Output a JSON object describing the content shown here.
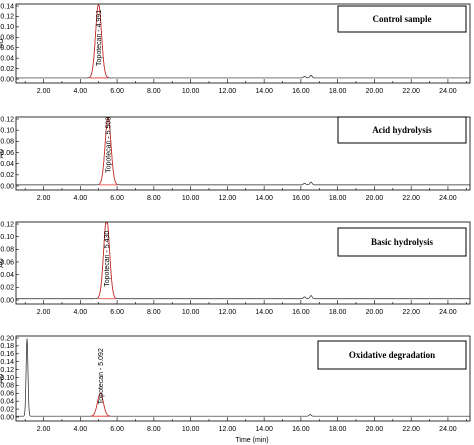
{
  "chart_data": [
    {
      "type": "line",
      "title": "Control sample",
      "ylabel": "AU",
      "xlabel": "",
      "xlim": [
        0.5,
        25.2
      ],
      "ylim": [
        0,
        0.14
      ],
      "y_ticks": [
        "0.00",
        "0.02",
        "0.04",
        "0.06",
        "0.08",
        "0.10",
        "0.12",
        "0.14"
      ],
      "x_ticks": [
        "2.00",
        "4.00",
        "6.00",
        "8.00",
        "10.00",
        "12.00",
        "14.00",
        "16.00",
        "18.00",
        "20.00",
        "22.00",
        "24.00"
      ],
      "baseline": 0.002,
      "peaks": [
        {
          "name": "Topotecan",
          "rt": 4.991,
          "height": 0.142,
          "label": "Topotecan - 4.991"
        },
        {
          "name": "",
          "rt": 16.2,
          "height": 0.003,
          "label": ""
        },
        {
          "name": "",
          "rt": 16.55,
          "height": 0.005,
          "label": ""
        }
      ]
    },
    {
      "type": "line",
      "title": "Acid hydrolysis",
      "ylabel": "AU",
      "xlabel": "",
      "xlim": [
        0.5,
        25.2
      ],
      "ylim": [
        0,
        0.12
      ],
      "y_ticks": [
        "0.00",
        "0.02",
        "0.04",
        "0.06",
        "0.08",
        "0.10",
        "0.12"
      ],
      "x_ticks": [
        "2.00",
        "4.00",
        "6.00",
        "8.00",
        "10.00",
        "12.00",
        "14.00",
        "16.00",
        "18.00",
        "20.00",
        "22.00",
        "24.00"
      ],
      "baseline": 0.002,
      "peaks": [
        {
          "name": "Topotecan",
          "rt": 5.508,
          "height": 0.12,
          "label": "Topotecan - 5.508"
        },
        {
          "name": "",
          "rt": 16.2,
          "height": 0.003,
          "label": ""
        },
        {
          "name": "",
          "rt": 16.55,
          "height": 0.005,
          "label": ""
        }
      ]
    },
    {
      "type": "line",
      "title": "Basic hydrolysis",
      "ylabel": "AU",
      "xlabel": "",
      "xlim": [
        0.5,
        25.2
      ],
      "ylim": [
        0,
        0.13
      ],
      "y_ticks": [
        "0.00",
        "0.02",
        "0.04",
        "0.06",
        "0.08",
        "0.10",
        "0.12"
      ],
      "x_ticks": [
        "2.00",
        "4.00",
        "6.00",
        "8.00",
        "10.00",
        "12.00",
        "14.00",
        "16.00",
        "18.00",
        "20.00",
        "22.00",
        "24.00"
      ],
      "baseline": 0.002,
      "peaks": [
        {
          "name": "Topotecan",
          "rt": 5.43,
          "height": 0.127,
          "label": "Topotecan - 5.430"
        },
        {
          "name": "",
          "rt": 16.2,
          "height": 0.003,
          "label": ""
        },
        {
          "name": "",
          "rt": 16.55,
          "height": 0.005,
          "label": ""
        }
      ]
    },
    {
      "type": "line",
      "title": "Oxidative degradation",
      "ylabel": "AU",
      "xlabel": "Time (min)",
      "xlim": [
        0.5,
        25.2
      ],
      "ylim": [
        0,
        0.21
      ],
      "y_ticks": [
        "0.00",
        "0.02",
        "0.04",
        "0.06",
        "0.08",
        "0.10",
        "0.12",
        "0.14",
        "0.16",
        "0.18",
        "0.20"
      ],
      "x_ticks": [
        "2.00",
        "4.00",
        "6.00",
        "8.00",
        "10.00",
        "12.00",
        "14.00",
        "16.00",
        "18.00",
        "20.00",
        "22.00",
        "24.00"
      ],
      "baseline": 0.002,
      "peaks": [
        {
          "name": "",
          "rt": 1.1,
          "height": 0.197,
          "label": ""
        },
        {
          "name": "Topotecan",
          "rt": 5.092,
          "height": 0.058,
          "label": "Topotecan - 5.092"
        },
        {
          "name": "",
          "rt": 16.5,
          "height": 0.004,
          "label": ""
        }
      ]
    }
  ]
}
